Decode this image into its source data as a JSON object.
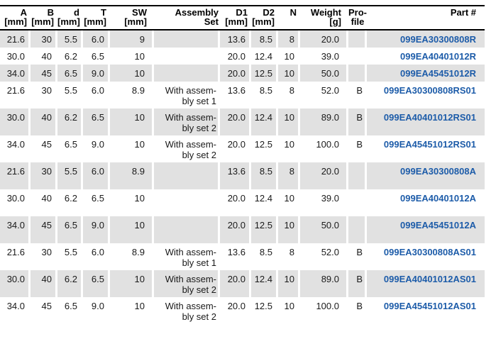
{
  "colors": {
    "part_number_blue": "#1d5ca9",
    "row_shade_gray": "#e1e1e1",
    "header_line_black": "#000000"
  },
  "table": {
    "columns": [
      {
        "key": "a",
        "label": "A\n[mm]"
      },
      {
        "key": "b",
        "label": "B\n[mm]"
      },
      {
        "key": "d",
        "label": "d\n[mm]"
      },
      {
        "key": "t",
        "label": "T\n[mm]"
      },
      {
        "key": "sw",
        "label": "SW\n[mm]"
      },
      {
        "key": "assembly",
        "label": "Assembly\nSet"
      },
      {
        "key": "d1",
        "label": "D1\n[mm]"
      },
      {
        "key": "d2",
        "label": "D2\n[mm]"
      },
      {
        "key": "n",
        "label": "N"
      },
      {
        "key": "weight",
        "label": "Weight\n[g]"
      },
      {
        "key": "profile",
        "label": "Pro-\nfile"
      },
      {
        "key": "part",
        "label": "Part #"
      }
    ],
    "rows": [
      {
        "cells": [
          "21.6",
          "30",
          "5.5",
          "6.0",
          "9",
          "",
          "13.6",
          "8.5",
          "8",
          "20.0",
          "",
          "099EA30300808R"
        ]
      },
      {
        "cells": [
          "30.0",
          "40",
          "6.2",
          "6.5",
          "10",
          "",
          "20.0",
          "12.4",
          "10",
          "39.0",
          "",
          "099EA40401012R"
        ]
      },
      {
        "cells": [
          "34.0",
          "45",
          "6.5",
          "9.0",
          "10",
          "",
          "20.0",
          "12.5",
          "10",
          "50.0",
          "",
          "099EA45451012R"
        ]
      },
      {
        "cells": [
          "21.6",
          "30",
          "5.5",
          "6.0",
          "8.9",
          "With assem-\nbly set 1",
          "13.6",
          "8.5",
          "8",
          "52.0",
          "B",
          "099EA30300808RS01"
        ]
      },
      {
        "cells": [
          "30.0",
          "40",
          "6.2",
          "6.5",
          "10",
          "With assem-\nbly set 2",
          "20.0",
          "12.4",
          "10",
          "89.0",
          "B",
          "099EA40401012RS01"
        ]
      },
      {
        "cells": [
          "34.0",
          "45",
          "6.5",
          "9.0",
          "10",
          "With assem-\nbly set 2",
          "20.0",
          "12.5",
          "10",
          "100.0",
          "B",
          "099EA45451012RS01"
        ]
      },
      {
        "cells": [
          "21.6",
          "30",
          "5.5",
          "6.0",
          "8.9",
          "",
          "13.6",
          "8.5",
          "8",
          "20.0",
          "",
          "099EA30300808A"
        ]
      },
      {
        "cells": [
          "30.0",
          "40",
          "6.2",
          "6.5",
          "10",
          "",
          "20.0",
          "12.4",
          "10",
          "39.0",
          "",
          "099EA40401012A"
        ]
      },
      {
        "cells": [
          "34.0",
          "45",
          "6.5",
          "9.0",
          "10",
          "",
          "20.0",
          "12.5",
          "10",
          "50.0",
          "",
          "099EA45451012A"
        ]
      },
      {
        "cells": [
          "21.6",
          "30",
          "5.5",
          "6.0",
          "8.9",
          "With assem-\nbly set 1",
          "13.6",
          "8.5",
          "8",
          "52.0",
          "B",
          "099EA30300808AS01"
        ]
      },
      {
        "cells": [
          "30.0",
          "40",
          "6.2",
          "6.5",
          "10",
          "With assem-\nbly set 2",
          "20.0",
          "12.4",
          "10",
          "89.0",
          "B",
          "099EA40401012AS01"
        ]
      },
      {
        "cells": [
          "34.0",
          "45",
          "6.5",
          "9.0",
          "10",
          "With assem-\nbly set 2",
          "20.0",
          "12.5",
          "10",
          "100.0",
          "B",
          "099EA45451012AS01"
        ]
      }
    ]
  }
}
